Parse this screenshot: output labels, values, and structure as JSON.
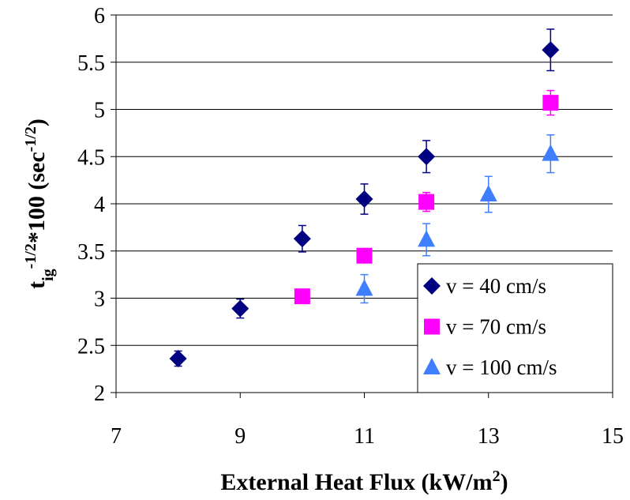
{
  "chart_data": {
    "type": "scatter",
    "xlabel": [
      {
        "text": "External Heat Flux (kW/m"
      },
      {
        "text": "2",
        "script": "super"
      },
      {
        "text": ")"
      }
    ],
    "ylabel": [
      {
        "text": "t"
      },
      {
        "text": "ig",
        "script": "sub"
      },
      {
        "text": "-1/2",
        "script": "super"
      },
      {
        "text": "*100 (sec"
      },
      {
        "text": "-1/2",
        "script": "super"
      },
      {
        "text": ")"
      }
    ],
    "xlim": [
      7,
      15
    ],
    "xticks": [
      7,
      9,
      11,
      13,
      15
    ],
    "ylim": [
      2,
      6
    ],
    "yticks": [
      2,
      2.5,
      3,
      3.5,
      4,
      4.5,
      5,
      5.5,
      6
    ],
    "grid": true,
    "legend": "lower right",
    "series": [
      {
        "name": "v = 40 cm/s",
        "color": "#000080",
        "marker": "diamond",
        "x": [
          8,
          9,
          10,
          11,
          12,
          14
        ],
        "values": [
          2.36,
          2.89,
          3.63,
          4.05,
          4.5,
          5.63
        ],
        "errors": [
          0.08,
          0.1,
          0.14,
          0.16,
          0.17,
          0.22
        ]
      },
      {
        "name": "v = 70 cm/s",
        "color": "#ff00ff",
        "marker": "square",
        "x": [
          10,
          11,
          12,
          14
        ],
        "values": [
          3.02,
          3.45,
          4.02,
          5.07
        ],
        "errors": [
          0.05,
          0.05,
          0.1,
          0.13
        ]
      },
      {
        "name": "v = 100 cm/s",
        "color": "#3f7fff",
        "marker": "triangle",
        "x": [
          11,
          12,
          13,
          14
        ],
        "values": [
          3.1,
          3.62,
          4.1,
          4.53
        ],
        "errors": [
          0.15,
          0.17,
          0.19,
          0.2
        ]
      }
    ]
  }
}
